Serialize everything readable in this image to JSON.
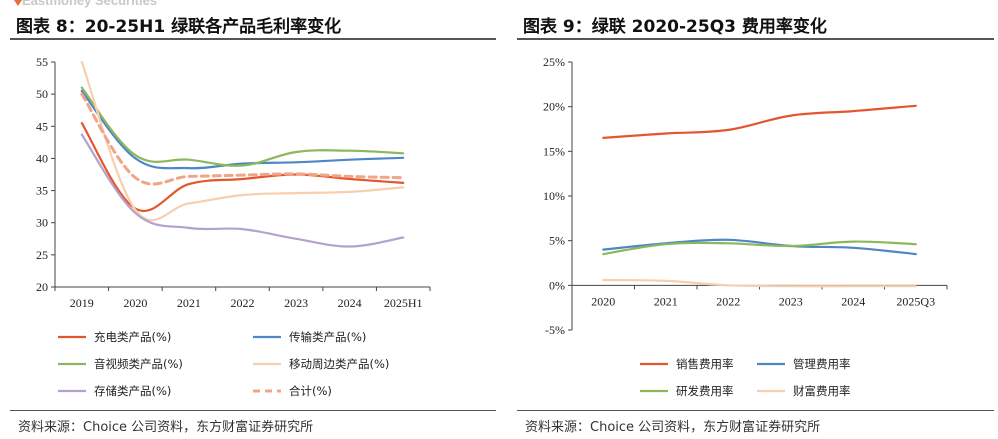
{
  "header": {
    "watermark": "Eastmoney Securities"
  },
  "left": {
    "title": "图表 8：20-25H1 绿联各产品毛利率变化",
    "source": "资料来源：Choice 公司资料，东方财富证券研究所",
    "chart_data": {
      "type": "line",
      "categories": [
        "2019",
        "2020",
        "2021",
        "2022",
        "2023",
        "2024",
        "2025H1"
      ],
      "ylim": [
        20,
        55
      ],
      "yticks": [
        "20",
        "25",
        "30",
        "35",
        "40",
        "45",
        "50",
        "55"
      ],
      "grid": false,
      "legend_position": "bottom",
      "series": [
        {
          "name": "充电类产品(%)",
          "color": "#e4572e",
          "dash": false,
          "values": [
            45.5,
            32.2,
            36.0,
            36.8,
            37.5,
            36.8,
            36.2
          ]
        },
        {
          "name": "传输类产品(%)",
          "color": "#4f86c6",
          "dash": false,
          "values": [
            50.5,
            40.0,
            38.5,
            39.2,
            39.4,
            39.8,
            40.1
          ]
        },
        {
          "name": "音视频类产品(%)",
          "color": "#8ab85a",
          "dash": false,
          "values": [
            51.0,
            40.5,
            39.8,
            38.9,
            41.0,
            41.2,
            40.8
          ]
        },
        {
          "name": "移动周边类产品(%)",
          "color": "#f8cfae",
          "dash": false,
          "values": [
            55.0,
            32.0,
            33.0,
            34.3,
            34.6,
            34.8,
            35.5
          ]
        },
        {
          "name": "存储类产品(%)",
          "color": "#b3a2cc",
          "dash": false,
          "values": [
            43.7,
            31.5,
            29.2,
            29.0,
            27.5,
            26.3,
            27.7
          ]
        },
        {
          "name": "合计(%)",
          "color": "#f0a588",
          "dash": true,
          "values": [
            50.0,
            37.0,
            37.2,
            37.4,
            37.6,
            37.2,
            37.0
          ]
        }
      ]
    }
  },
  "right": {
    "title": "图表 9：绿联 2020-25Q3 费用率变化",
    "source": "资料来源：Choice 公司资料，东方财富证券研究所",
    "chart_data": {
      "type": "line",
      "categories": [
        "2020",
        "2021",
        "2022",
        "2023",
        "2024",
        "2025Q3"
      ],
      "ylim": [
        -5,
        25
      ],
      "yticks": [
        "-5%",
        "0%",
        "5%",
        "10%",
        "15%",
        "20%",
        "25%"
      ],
      "grid": false,
      "legend_position": "bottom",
      "series": [
        {
          "name": "销售费用率",
          "color": "#e4572e",
          "dash": false,
          "values": [
            16.5,
            17.0,
            17.4,
            19.0,
            19.5,
            20.1
          ]
        },
        {
          "name": "管理费用率",
          "color": "#4f86c6",
          "dash": false,
          "values": [
            4.0,
            4.7,
            5.1,
            4.4,
            4.2,
            3.5
          ]
        },
        {
          "name": "研发费用率",
          "color": "#8ab85a",
          "dash": false,
          "values": [
            3.5,
            4.6,
            4.7,
            4.4,
            4.9,
            4.6
          ]
        },
        {
          "name": "财富费用率",
          "color": "#f8cfae",
          "dash": false,
          "values": [
            0.6,
            0.5,
            0.0,
            -0.1,
            -0.1,
            -0.1
          ]
        }
      ]
    }
  }
}
